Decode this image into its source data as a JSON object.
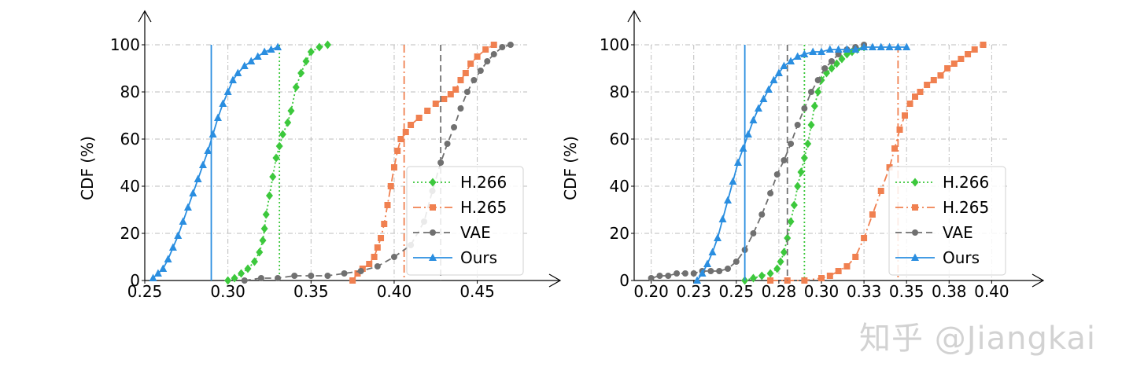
{
  "watermark": "知乎 @Jiangkai",
  "colors": {
    "H.266": "#3cc83c",
    "H.265": "#f08050",
    "VAE": "#707070",
    "Ours": "#2a8ee0",
    "grid": "#bdbdbd",
    "axis": "#000000"
  },
  "chart_data": [
    {
      "type": "line",
      "ylabel": "CDF (%)",
      "xlim": [
        0.25,
        0.48
      ],
      "ylim": [
        0,
        100
      ],
      "xticks": [
        0.25,
        0.3,
        0.35,
        0.4,
        0.45
      ],
      "xtick_labels": [
        "0.25",
        "0.30",
        "0.35",
        "0.40",
        "0.45"
      ],
      "yticks": [
        0,
        20,
        40,
        60,
        80,
        100
      ],
      "ytick_labels": [
        "0",
        "20",
        "40",
        "60",
        "80",
        "100"
      ],
      "grid": true,
      "legend": "lower-right",
      "series": [
        {
          "name": "H.266",
          "marker": "diamond",
          "dash": "dotted",
          "vline": 0.331,
          "x": [
            0.3,
            0.304,
            0.308,
            0.312,
            0.316,
            0.319,
            0.321,
            0.322,
            0.323,
            0.325,
            0.327,
            0.329,
            0.331,
            0.333,
            0.336,
            0.338,
            0.341,
            0.344,
            0.347,
            0.35,
            0.355,
            0.36
          ],
          "y": [
            0,
            1,
            3,
            5,
            8,
            12,
            17,
            22,
            28,
            36,
            44,
            52,
            57,
            62,
            67,
            72,
            82,
            88,
            93,
            97,
            99,
            100
          ]
        },
        {
          "name": "H.265",
          "marker": "square",
          "dash": "dashdot",
          "vline": 0.406,
          "x": [
            0.375,
            0.378,
            0.381,
            0.385,
            0.388,
            0.39,
            0.392,
            0.394,
            0.396,
            0.398,
            0.4,
            0.402,
            0.404,
            0.407,
            0.41,
            0.415,
            0.42,
            0.425,
            0.43,
            0.434,
            0.437,
            0.44,
            0.443,
            0.446,
            0.45,
            0.455,
            0.46
          ],
          "y": [
            0,
            3,
            5,
            7,
            10,
            14,
            18,
            24,
            32,
            40,
            48,
            55,
            60,
            63,
            66,
            69,
            72,
            75,
            77,
            79,
            81,
            85,
            88,
            92,
            95,
            98,
            100
          ]
        },
        {
          "name": "VAE",
          "marker": "circle",
          "dash": "dashed",
          "vline": 0.428,
          "x": [
            0.31,
            0.32,
            0.33,
            0.34,
            0.35,
            0.36,
            0.37,
            0.38,
            0.39,
            0.4,
            0.41,
            0.418,
            0.423,
            0.428,
            0.432,
            0.436,
            0.44,
            0.444,
            0.448,
            0.452,
            0.456,
            0.46,
            0.465,
            0.47
          ],
          "y": [
            0,
            1,
            1,
            2,
            2,
            2,
            3,
            4,
            6,
            10,
            15,
            25,
            38,
            50,
            58,
            65,
            73,
            80,
            85,
            89,
            93,
            96,
            99,
            100
          ]
        },
        {
          "name": "Ours",
          "marker": "triangle",
          "dash": "solid",
          "vline": 0.29,
          "x": [
            0.255,
            0.258,
            0.261,
            0.264,
            0.267,
            0.27,
            0.273,
            0.276,
            0.279,
            0.282,
            0.285,
            0.288,
            0.291,
            0.294,
            0.297,
            0.3,
            0.303,
            0.306,
            0.31,
            0.314,
            0.318,
            0.322,
            0.326,
            0.33
          ],
          "y": [
            1,
            3,
            5,
            9,
            14,
            19,
            25,
            31,
            37,
            43,
            49,
            55,
            62,
            69,
            75,
            80,
            85,
            88,
            91,
            93,
            95,
            97,
            98,
            99
          ]
        }
      ],
      "legend_labels": [
        "H.266",
        "H.265",
        "VAE",
        "Ours"
      ]
    },
    {
      "type": "line",
      "ylabel": "CDF (%)",
      "xlim": [
        0.19,
        0.41
      ],
      "ylim": [
        0,
        100
      ],
      "xticks": [
        0.2,
        0.225,
        0.25,
        0.275,
        0.3,
        0.325,
        0.35,
        0.375,
        0.4
      ],
      "xtick_labels": [
        "0.20",
        "0.23",
        "0.25",
        "0.28",
        "0.30",
        "0.33",
        "0.35",
        "0.38",
        "0.40"
      ],
      "yticks": [
        0,
        20,
        40,
        60,
        80,
        100
      ],
      "ytick_labels": [
        "0",
        "20",
        "40",
        "60",
        "80",
        "100"
      ],
      "grid": true,
      "legend": "lower-right",
      "series": [
        {
          "name": "H.266",
          "marker": "diamond",
          "dash": "dotted",
          "vline": 0.29,
          "x": [
            0.255,
            0.26,
            0.265,
            0.27,
            0.274,
            0.276,
            0.278,
            0.28,
            0.282,
            0.284,
            0.286,
            0.288,
            0.29,
            0.292,
            0.294,
            0.296,
            0.298,
            0.3,
            0.303,
            0.306,
            0.309,
            0.312,
            0.315,
            0.318,
            0.321,
            0.325
          ],
          "y": [
            0,
            1,
            2,
            3,
            5,
            8,
            12,
            18,
            25,
            32,
            40,
            46,
            52,
            58,
            66,
            74,
            80,
            85,
            88,
            90,
            92,
            94,
            96,
            97,
            98,
            99
          ]
        },
        {
          "name": "H.265",
          "marker": "square",
          "dash": "dashdot",
          "vline": 0.345,
          "x": [
            0.27,
            0.28,
            0.29,
            0.3,
            0.305,
            0.31,
            0.315,
            0.32,
            0.325,
            0.33,
            0.335,
            0.34,
            0.343,
            0.346,
            0.349,
            0.352,
            0.355,
            0.358,
            0.362,
            0.366,
            0.37,
            0.374,
            0.378,
            0.382,
            0.386,
            0.39,
            0.395
          ],
          "y": [
            0,
            0,
            0,
            1,
            2,
            4,
            6,
            10,
            18,
            28,
            38,
            48,
            56,
            64,
            70,
            75,
            78,
            80,
            83,
            85,
            87,
            90,
            92,
            94,
            96,
            98,
            100
          ]
        },
        {
          "name": "VAE",
          "marker": "circle",
          "dash": "dashed",
          "vline": 0.28,
          "x": [
            0.2,
            0.205,
            0.21,
            0.215,
            0.22,
            0.225,
            0.23,
            0.235,
            0.24,
            0.245,
            0.25,
            0.255,
            0.26,
            0.265,
            0.27,
            0.274,
            0.278,
            0.282,
            0.286,
            0.29,
            0.294,
            0.298,
            0.302,
            0.306,
            0.31,
            0.315,
            0.32,
            0.325
          ],
          "y": [
            1,
            2,
            2,
            3,
            3,
            3,
            4,
            4,
            4,
            5,
            8,
            13,
            20,
            28,
            37,
            45,
            51,
            58,
            66,
            73,
            80,
            85,
            90,
            93,
            96,
            98,
            99,
            100
          ]
        },
        {
          "name": "Ours",
          "marker": "triangle",
          "dash": "solid",
          "vline": 0.255,
          "x": [
            0.227,
            0.23,
            0.233,
            0.236,
            0.239,
            0.242,
            0.245,
            0.248,
            0.251,
            0.254,
            0.257,
            0.26,
            0.263,
            0.266,
            0.269,
            0.272,
            0.275,
            0.278,
            0.282,
            0.286,
            0.29,
            0.295,
            0.3,
            0.305,
            0.31,
            0.315,
            0.32,
            0.325,
            0.33,
            0.335,
            0.34,
            0.345,
            0.35
          ],
          "y": [
            0,
            3,
            7,
            12,
            18,
            26,
            34,
            42,
            50,
            56,
            62,
            68,
            73,
            77,
            81,
            85,
            88,
            91,
            93,
            95,
            96,
            97,
            97,
            98,
            98,
            98,
            98,
            99,
            99,
            99,
            99,
            99,
            99
          ]
        }
      ],
      "legend_labels": [
        "H.266",
        "H.265",
        "VAE",
        "Ours"
      ]
    }
  ]
}
